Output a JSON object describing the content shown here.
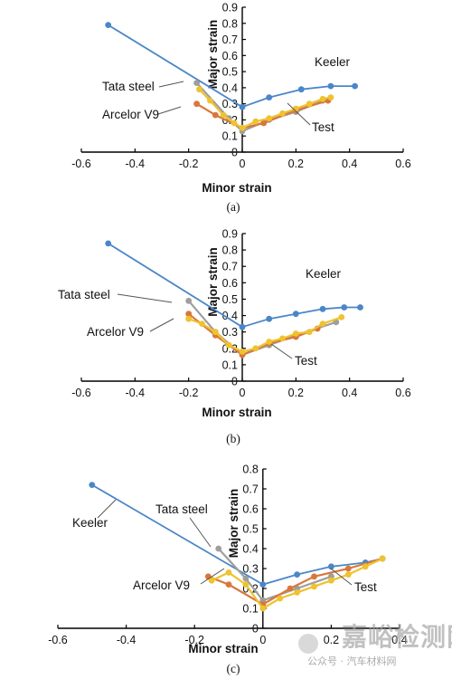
{
  "chart_data": [
    {
      "type": "line",
      "panel_label": "(a)",
      "xlabel": "Minor strain",
      "ylabel": "Major strain",
      "xlim": [
        -0.6,
        0.6
      ],
      "ylim": [
        0,
        0.9
      ],
      "xticks": [
        "-0.6",
        "-0.4",
        "-0.2",
        "0",
        "0.2",
        "0.4",
        "0.6"
      ],
      "yticks": [
        "0",
        "0.1",
        "0.2",
        "0.3",
        "0.4",
        "0.5",
        "0.6",
        "0.7",
        "0.8",
        "0.9"
      ],
      "series": [
        {
          "name": "Keeler",
          "color": "#4a86c8",
          "points": [
            [
              -0.5,
              0.79
            ],
            [
              0,
              0.28
            ],
            [
              0.1,
              0.34
            ],
            [
              0.22,
              0.39
            ],
            [
              0.33,
              0.41
            ],
            [
              0.42,
              0.41
            ]
          ]
        },
        {
          "name": "Tata steel",
          "color": "#9e9e9e",
          "points": [
            [
              -0.17,
              0.43
            ],
            [
              -0.05,
              0.21
            ],
            [
              0,
              0.13
            ],
            [
              0.1,
              0.2
            ],
            [
              0.2,
              0.25
            ],
            [
              0.3,
              0.32
            ]
          ]
        },
        {
          "name": "Arcelor V9",
          "color": "#d9773a",
          "points": [
            [
              -0.17,
              0.3
            ],
            [
              -0.1,
              0.23
            ],
            [
              0,
              0.15
            ],
            [
              0.08,
              0.18
            ],
            [
              0.2,
              0.26
            ],
            [
              0.32,
              0.32
            ]
          ]
        },
        {
          "name": "Test",
          "color": "#efc22e",
          "points": [
            [
              -0.16,
              0.39
            ],
            [
              -0.12,
              0.32
            ],
            [
              -0.07,
              0.23
            ],
            [
              -0.03,
              0.18
            ],
            [
              0,
              0.15
            ],
            [
              0.05,
              0.19
            ],
            [
              0.1,
              0.21
            ],
            [
              0.15,
              0.24
            ],
            [
              0.2,
              0.27
            ],
            [
              0.25,
              0.3
            ],
            [
              0.3,
              0.33
            ],
            [
              0.33,
              0.34
            ]
          ]
        }
      ]
    },
    {
      "type": "line",
      "panel_label": "(b)",
      "xlabel": "Minor strain",
      "ylabel": "Major strain",
      "xlim": [
        -0.6,
        0.6
      ],
      "ylim": [
        0,
        0.9
      ],
      "xticks": [
        "-0.6",
        "-0.4",
        "-0.2",
        "0",
        "0.2",
        "0.4",
        "0.6"
      ],
      "yticks": [
        "0",
        "0.1",
        "0.2",
        "0.3",
        "0.4",
        "0.5",
        "0.6",
        "0.7",
        "0.8",
        "0.9"
      ],
      "series": [
        {
          "name": "Keeler",
          "color": "#4a86c8",
          "points": [
            [
              -0.5,
              0.84
            ],
            [
              0,
              0.33
            ],
            [
              0.1,
              0.38
            ],
            [
              0.2,
              0.41
            ],
            [
              0.3,
              0.44
            ],
            [
              0.38,
              0.45
            ],
            [
              0.44,
              0.45
            ]
          ]
        },
        {
          "name": "Tata steel",
          "color": "#9e9e9e",
          "points": [
            [
              -0.2,
              0.49
            ],
            [
              -0.1,
              0.3
            ],
            [
              0,
              0.16
            ],
            [
              0.1,
              0.22
            ],
            [
              0.2,
              0.28
            ],
            [
              0.35,
              0.36
            ]
          ]
        },
        {
          "name": "Arcelor V9",
          "color": "#d9773a",
          "points": [
            [
              -0.2,
              0.41
            ],
            [
              -0.1,
              0.28
            ],
            [
              0,
              0.16
            ],
            [
              0.1,
              0.23
            ],
            [
              0.2,
              0.27
            ],
            [
              0.28,
              0.32
            ]
          ]
        },
        {
          "name": "Test",
          "color": "#efc22e",
          "points": [
            [
              -0.2,
              0.38
            ],
            [
              -0.15,
              0.35
            ],
            [
              -0.1,
              0.3
            ],
            [
              -0.05,
              0.22
            ],
            [
              0,
              0.18
            ],
            [
              0.05,
              0.2
            ],
            [
              0.1,
              0.24
            ],
            [
              0.15,
              0.26
            ],
            [
              0.2,
              0.29
            ],
            [
              0.25,
              0.3
            ],
            [
              0.3,
              0.35
            ],
            [
              0.37,
              0.39
            ]
          ]
        }
      ]
    },
    {
      "type": "line",
      "panel_label": "(c)",
      "xlabel": "Minor strain",
      "ylabel": "Major strain",
      "xlim": [
        -0.6,
        0.4
      ],
      "ylim": [
        0,
        0.8
      ],
      "xticks": [
        "-0.6",
        "-0.4",
        "-0.2",
        "0",
        "0.2",
        "0.4"
      ],
      "yticks": [
        "0",
        "0.1",
        "0.2",
        "0.3",
        "0.4",
        "0.5",
        "0.6",
        "0.7",
        "0.8"
      ],
      "series": [
        {
          "name": "Keeler",
          "color": "#4a86c8",
          "points": [
            [
              -0.5,
              0.72
            ],
            [
              0,
              0.22
            ],
            [
              0.1,
              0.27
            ],
            [
              0.2,
              0.31
            ],
            [
              0.3,
              0.33
            ],
            [
              0.35,
              0.35
            ]
          ]
        },
        {
          "name": "Tata steel",
          "color": "#9e9e9e",
          "points": [
            [
              -0.13,
              0.4
            ],
            [
              -0.05,
              0.25
            ],
            [
              0,
              0.14
            ],
            [
              0.1,
              0.2
            ],
            [
              0.2,
              0.26
            ]
          ]
        },
        {
          "name": "Arcelor V9",
          "color": "#d9773a",
          "points": [
            [
              -0.16,
              0.26
            ],
            [
              -0.1,
              0.22
            ],
            [
              0,
              0.12
            ],
            [
              0.08,
              0.2
            ],
            [
              0.15,
              0.26
            ],
            [
              0.25,
              0.3
            ],
            [
              0.35,
              0.35
            ]
          ]
        },
        {
          "name": "Test",
          "color": "#efc22e",
          "points": [
            [
              -0.15,
              0.24
            ],
            [
              -0.1,
              0.28
            ],
            [
              -0.05,
              0.22
            ],
            [
              0,
              0.1
            ],
            [
              0.05,
              0.15
            ],
            [
              0.1,
              0.18
            ],
            [
              0.15,
              0.21
            ],
            [
              0.2,
              0.24
            ],
            [
              0.25,
              0.27
            ],
            [
              0.3,
              0.31
            ],
            [
              0.35,
              0.35
            ]
          ]
        }
      ]
    }
  ],
  "watermark": {
    "main": "嘉峪检测网",
    "sub": "公众号 · 汽车材料网"
  }
}
